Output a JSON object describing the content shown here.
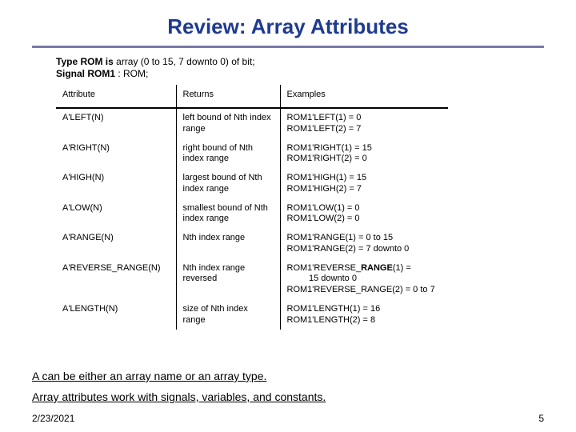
{
  "title": {
    "text": "Review: Array Attributes",
    "color": "#1f3b8f",
    "fontsize": 26
  },
  "rule_color": "#7a7aa8",
  "typedecl": {
    "line1_pre": "Type ROM is",
    "line1_rest": " array (0 to 15, 7 downto 0) of bit;",
    "line2_pre": "Signal ROM1",
    "line2_rest": " : ROM;",
    "fontsize": 12
  },
  "table": {
    "fontsize": 11,
    "col_widths": {
      "attr": 150,
      "ret": 130,
      "ex": 210
    },
    "headers": {
      "attr": "Attribute",
      "ret": "Returns",
      "ex": "Examples"
    },
    "rows": [
      {
        "attr": "A'LEFT(N)",
        "ret": "left bound of Nth index range",
        "ex": "ROM1'LEFT(1) = 0\nROM1'LEFT(2) = 7"
      },
      {
        "attr": "A'RIGHT(N)",
        "ret": "right bound of Nth index range",
        "ex": "ROM1'RIGHT(1) = 15\nROM1'RIGHT(2) = 0"
      },
      {
        "attr": "A'HIGH(N)",
        "ret": "largest bound of Nth index range",
        "ex": "ROM1'HIGH(1) = 15\nROM1'HIGH(2) = 7"
      },
      {
        "attr": "A'LOW(N)",
        "ret": "smallest bound of Nth index range",
        "ex": "ROM1'LOW(1) = 0\nROM1'LOW(2) = 0"
      },
      {
        "attr": "A'RANGE(N)",
        "ret": "Nth index range",
        "ex": "ROM1'RANGE(1) = 0 to 15\nROM1'RANGE(2) = 7 downto 0"
      },
      {
        "attr": "A'REVERSE_RANGE(N)",
        "ret": "Nth index range reversed",
        "ex_bold_prefix": "ROM1'REVERSE_",
        "ex_bold_mid": "RANGE",
        "ex_bold_rest": "(1) =\n         15 downto 0\nROM1'REVERSE_RANGE(2) = 0 to 7"
      },
      {
        "attr": "A'LENGTH(N)",
        "ret": "size of Nth index range",
        "ex": "ROM1'LENGTH(1) = 16\nROM1'LENGTH(2) = 8"
      }
    ]
  },
  "note1": {
    "text": "A can be either an array name or an array type.",
    "fontsize": 14
  },
  "note2": {
    "text": "Array attributes work with signals, variables, and constants.",
    "fontsize": 14
  },
  "footer": {
    "date": "2/23/2021",
    "page": "5",
    "fontsize": 12
  }
}
